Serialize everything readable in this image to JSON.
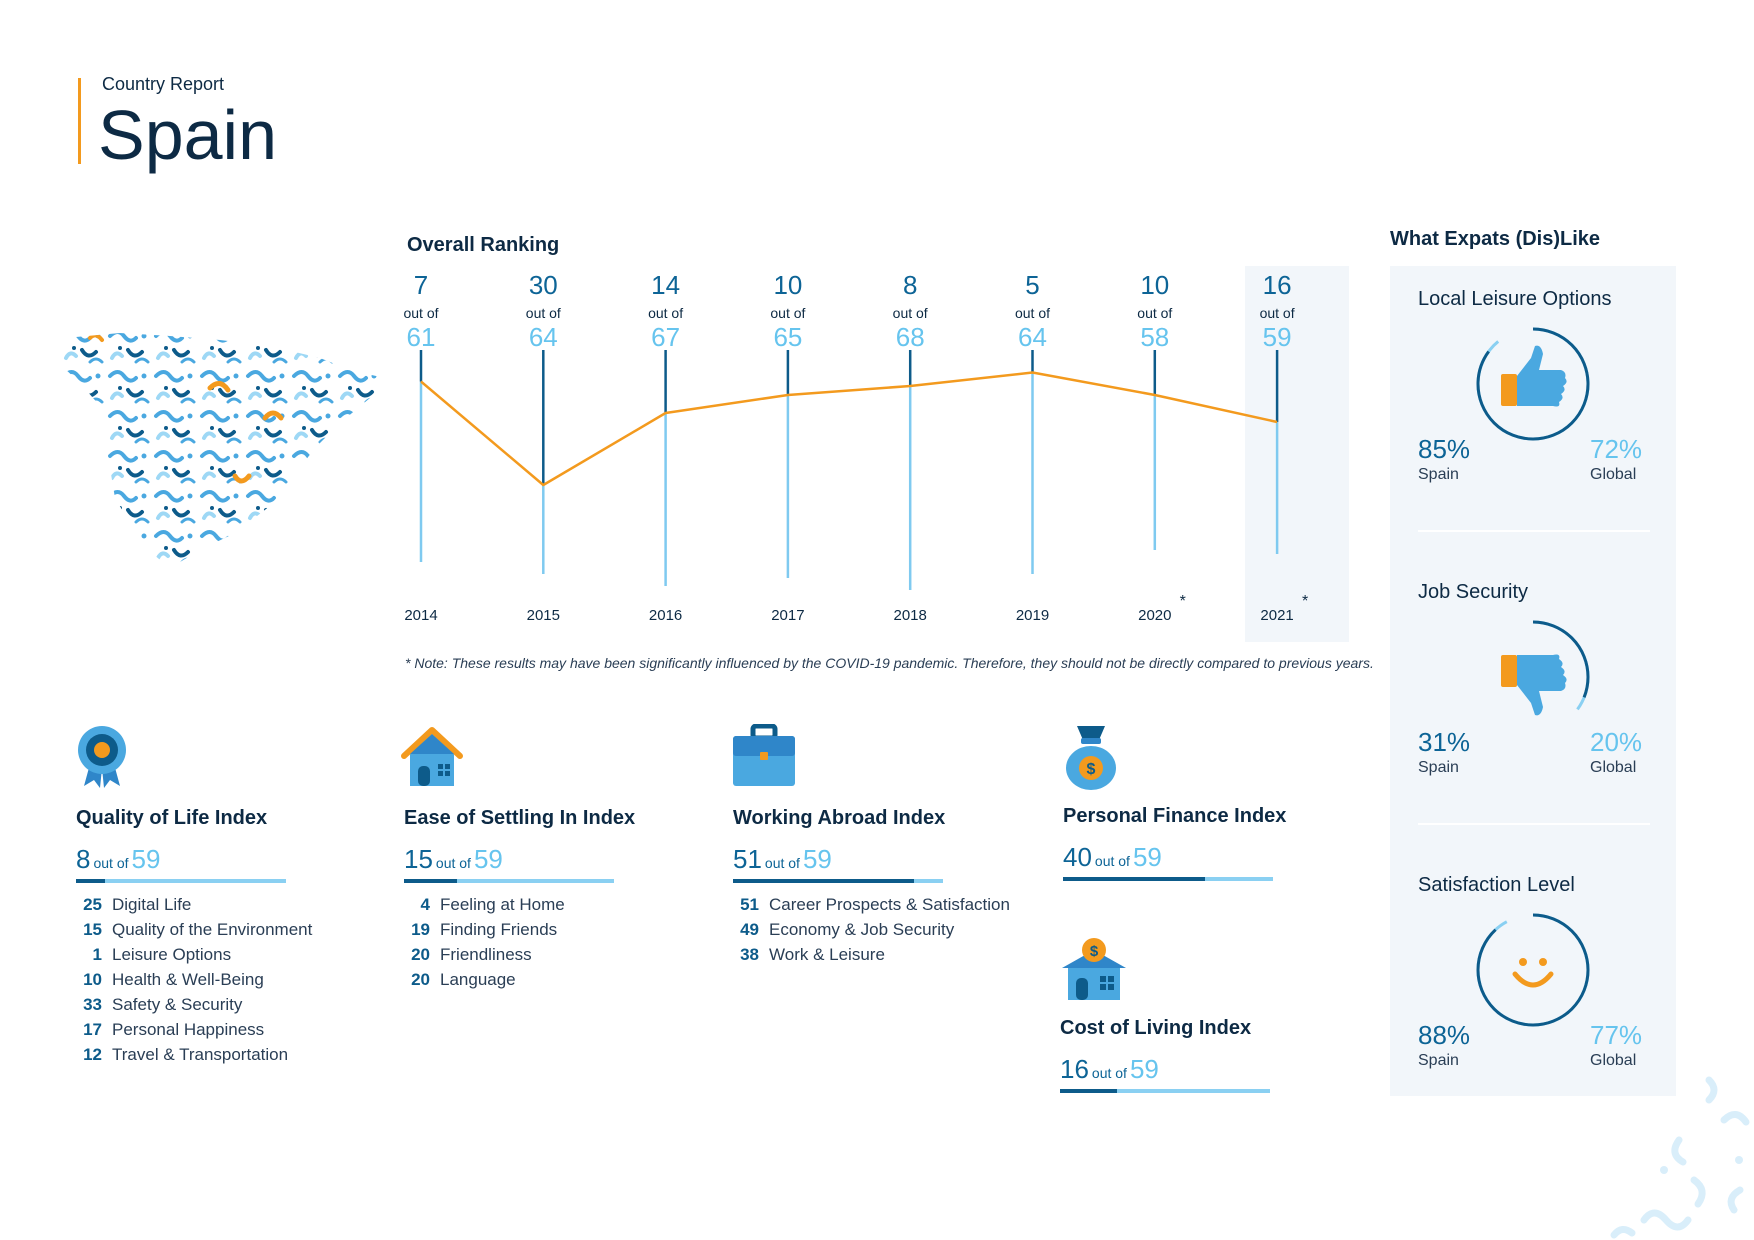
{
  "header": {
    "subtitle": "Country Report",
    "title": "Spain"
  },
  "overall_ranking": {
    "title": "Overall Ranking",
    "out_of_label": "out of"
  },
  "chart_data": {
    "type": "line",
    "title": "Overall Ranking",
    "x": [
      "2014",
      "2015",
      "2016",
      "2017",
      "2018",
      "2019",
      "2020",
      "2021"
    ],
    "x_labels": [
      "2014",
      "2015",
      "2016",
      "2017",
      "2018",
      "2019",
      "2020",
      "2021"
    ],
    "ranks": [
      7,
      30,
      14,
      10,
      8,
      5,
      10,
      16
    ],
    "rank_labels": [
      "7",
      "30",
      "14",
      "10",
      "8",
      "5",
      "10",
      "16"
    ],
    "totals": [
      61,
      64,
      67,
      65,
      68,
      64,
      58,
      59
    ],
    "total_labels": [
      "61",
      "64",
      "67",
      "65",
      "68",
      "64",
      "58",
      "59"
    ],
    "asterisks": [
      "",
      "",
      "",
      "",
      "",
      "",
      "*",
      "*"
    ],
    "highlight": "2021",
    "y_inverted": true,
    "line_color": "#f39a1e"
  },
  "note": "* Note: These results may have been significantly influenced by the COVID-19 pandemic. Therefore, they should not be directly compared to previous years.",
  "indices": [
    {
      "title": "Quality of Life Index",
      "rank": "8",
      "out_of": "out of",
      "total": "59",
      "fraction": 0.136,
      "icon": "medal-icon",
      "items": [
        {
          "rank": "25",
          "label": "Digital Life"
        },
        {
          "rank": "15",
          "label": "Quality of the Environment"
        },
        {
          "rank": "1",
          "label": "Leisure Options"
        },
        {
          "rank": "10",
          "label": "Health & Well-Being"
        },
        {
          "rank": "33",
          "label": "Safety & Security"
        },
        {
          "rank": "17",
          "label": "Personal Happiness"
        },
        {
          "rank": "12",
          "label": "Travel & Transportation"
        }
      ]
    },
    {
      "title": "Ease of Settling In Index",
      "rank": "15",
      "out_of": "out of",
      "total": "59",
      "fraction": 0.254,
      "icon": "house-icon",
      "items": [
        {
          "rank": "4",
          "label": "Feeling at Home"
        },
        {
          "rank": "19",
          "label": "Finding Friends"
        },
        {
          "rank": "20",
          "label": "Friendliness"
        },
        {
          "rank": "20",
          "label": "Language"
        }
      ]
    },
    {
      "title": "Working Abroad Index",
      "rank": "51",
      "out_of": "out of",
      "total": "59",
      "fraction": 0.864,
      "icon": "briefcase-icon",
      "items": [
        {
          "rank": "51",
          "label": "Career Prospects & Satisfaction"
        },
        {
          "rank": "49",
          "label": "Economy & Job Security"
        },
        {
          "rank": "38",
          "label": "Work & Leisure"
        }
      ]
    },
    {
      "title": "Personal Finance Index",
      "rank": "40",
      "out_of": "out of",
      "total": "59",
      "fraction": 0.678,
      "icon": "money-bag-icon",
      "items": []
    },
    {
      "title": "Cost of Living Index",
      "rank": "16",
      "out_of": "out of",
      "total": "59",
      "fraction": 0.271,
      "icon": "house-coin-icon",
      "items": []
    }
  ],
  "likes": {
    "title": "What Expats (Dis)Like",
    "cards": [
      {
        "title": "Local Leisure Options",
        "spain": "85%",
        "spain_label": "Spain",
        "global": "72%",
        "global_label": "Global",
        "spain_value": 0.85,
        "icon": "thumbs-up-icon"
      },
      {
        "title": "Job Security",
        "spain": "31%",
        "spain_label": "Spain",
        "global": "20%",
        "global_label": "Global",
        "spain_value": 0.31,
        "icon": "thumbs-down-icon"
      },
      {
        "title": "Satisfaction Level",
        "spain": "88%",
        "spain_label": "Spain",
        "global": "77%",
        "global_label": "Global",
        "spain_value": 0.88,
        "icon": "smiley-icon"
      }
    ]
  },
  "colors": {
    "navy": "#0d2a44",
    "dark_blue": "#0d5b8a",
    "light_blue": "#66c4ee",
    "orange": "#f39a1e"
  }
}
